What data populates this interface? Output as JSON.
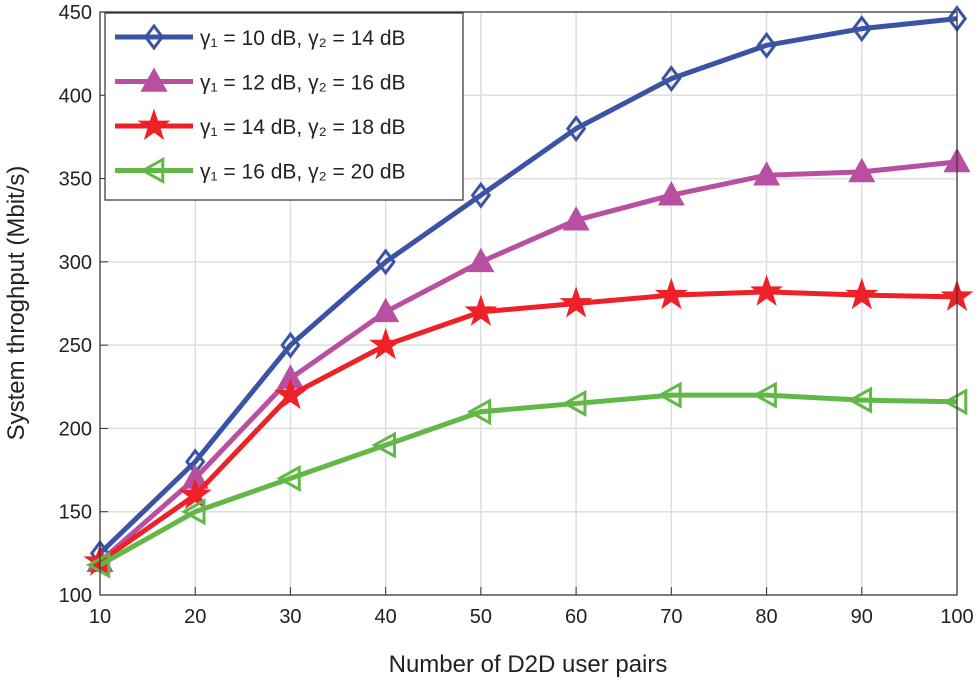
{
  "chart_data": {
    "type": "line",
    "title": "",
    "xlabel": "Number of D2D user pairs",
    "ylabel": "System throghput (Mbit/s)",
    "xlim": [
      10,
      100
    ],
    "ylim": [
      100,
      450
    ],
    "xticks": [
      10,
      20,
      30,
      40,
      50,
      60,
      70,
      80,
      90,
      100
    ],
    "yticks": [
      100,
      150,
      200,
      250,
      300,
      350,
      400,
      450
    ],
    "grid": true,
    "legend_position": "top-left",
    "x": [
      10,
      20,
      30,
      40,
      50,
      60,
      70,
      80,
      90,
      100
    ],
    "series": [
      {
        "name": "γ₁ = 10 dB, γ₂ = 14 dB",
        "color": "#3a53a4",
        "marker": "diamond",
        "values": [
          125,
          180,
          250,
          300,
          340,
          380,
          410,
          430,
          440,
          446
        ]
      },
      {
        "name": "γ₁ = 12 dB, γ₂  = 16 dB",
        "color": "#b84fa0",
        "marker": "triangle-up",
        "values": [
          120,
          170,
          230,
          270,
          300,
          325,
          340,
          352,
          354,
          360
        ]
      },
      {
        "name": "γ₁ = 14 dB, γ₂ = 18 dB",
        "color": "#ee2028",
        "marker": "star",
        "values": [
          120,
          160,
          220,
          250,
          270,
          275,
          280,
          282,
          280,
          279
        ]
      },
      {
        "name": "γ₁ = 16 dB, γ₂ = 20 dB",
        "color": "#62b846",
        "marker": "triangle-left",
        "values": [
          118,
          150,
          170,
          190,
          210,
          215,
          220,
          220,
          217,
          216
        ]
      }
    ]
  }
}
